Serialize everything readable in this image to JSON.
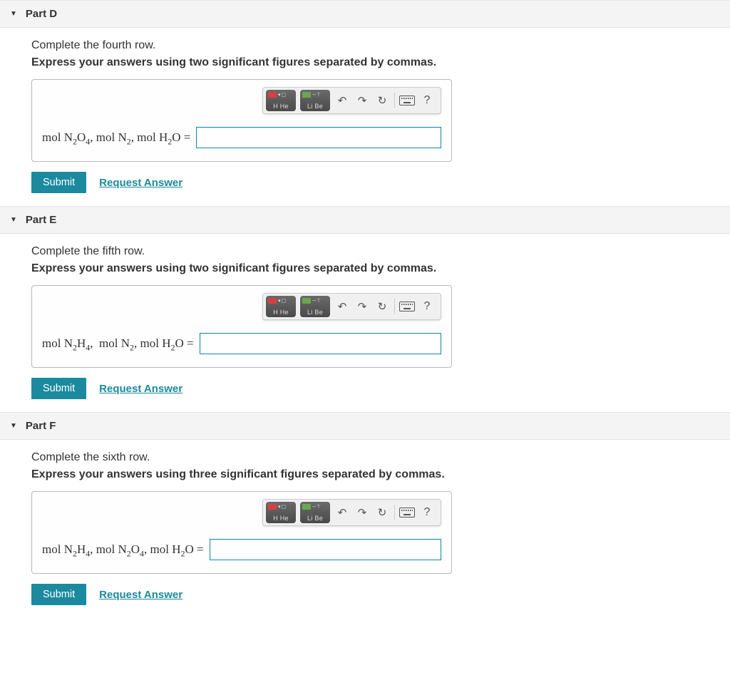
{
  "colors": {
    "header_bg": "#f4f4f4",
    "border": "#b8b8b8",
    "accent": "#1b8a9e",
    "input_border": "#0f8ba5",
    "text": "#333333"
  },
  "buttons": {
    "submit": "Submit",
    "request": "Request Answer"
  },
  "toolbar": {
    "undo": "↶",
    "redo": "↷",
    "reset": "↻",
    "help": "?",
    "periodic1_row": "▾ ▢",
    "periodic1_label": "H He",
    "periodic2_row": "─ ⊤",
    "periodic2_label": "Li Be"
  },
  "parts": [
    {
      "id": "D",
      "title": "Part D",
      "prompt1": "Complete the fourth row.",
      "prompt2": "Express your answers using two significant figures separated by commas.",
      "label_html": "mol N<sub>2</sub>O<sub>4</sub>, mol N<sub>2</sub>, mol H<sub>2</sub>O ="
    },
    {
      "id": "E",
      "title": "Part E",
      "prompt1": "Complete the fifth row.",
      "prompt2": "Express your answers using two significant figures separated by commas.",
      "label_html": "mol N<sub>2</sub>H<sub>4</sub>,&nbsp; mol N<sub>2</sub>, mol H<sub>2</sub>O ="
    },
    {
      "id": "F",
      "title": "Part F",
      "prompt1": "Complete the sixth row.",
      "prompt2": "Express your answers using three significant figures separated by commas.",
      "label_html": "mol N<sub>2</sub>H<sub>4</sub>, mol N<sub>2</sub>O<sub>4</sub>, mol H<sub>2</sub>O ="
    }
  ]
}
